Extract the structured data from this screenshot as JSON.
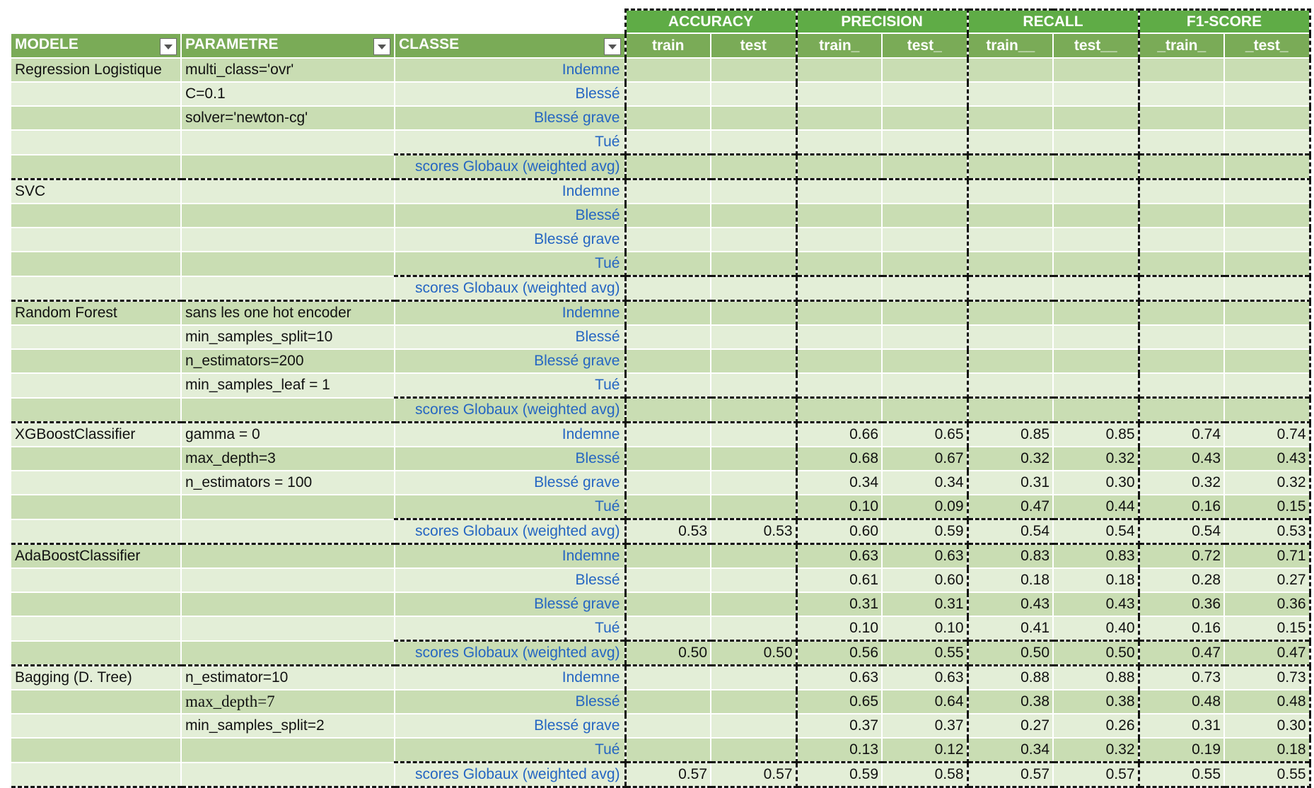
{
  "groups": [
    "ACCURACY",
    "PRECISION",
    "RECALL",
    "F1-SCORE"
  ],
  "headers": {
    "model": "MODELE",
    "param": "PARAMETRE",
    "class": "CLASSE",
    "sub": [
      "train",
      "test",
      "train_",
      "test_",
      "train__",
      "test__",
      "_train_",
      "_test_"
    ]
  },
  "blocks": [
    {
      "model": "Regression Logistique",
      "rows": [
        {
          "param": "multi_class='ovr'",
          "class": "Indemne",
          "v": [
            "",
            "",
            "",
            "",
            "",
            "",
            "",
            ""
          ]
        },
        {
          "param": "C=0.1",
          "class": "Blessé",
          "v": [
            "",
            "",
            "",
            "",
            "",
            "",
            "",
            ""
          ]
        },
        {
          "param": "solver='newton-cg'",
          "class": "Blessé grave",
          "v": [
            "",
            "",
            "",
            "",
            "",
            "",
            "",
            ""
          ]
        },
        {
          "param": "",
          "class": "Tué",
          "v": [
            "",
            "",
            "",
            "",
            "",
            "",
            "",
            ""
          ]
        },
        {
          "param": "",
          "class": "scores Globaux (weighted avg)",
          "v": [
            "",
            "",
            "",
            "",
            "",
            "",
            "",
            ""
          ]
        }
      ]
    },
    {
      "model": "SVC",
      "rows": [
        {
          "param": "",
          "class": "Indemne",
          "v": [
            "",
            "",
            "",
            "",
            "",
            "",
            "",
            ""
          ]
        },
        {
          "param": "",
          "class": "Blessé",
          "v": [
            "",
            "",
            "",
            "",
            "",
            "",
            "",
            ""
          ]
        },
        {
          "param": "",
          "class": "Blessé grave",
          "v": [
            "",
            "",
            "",
            "",
            "",
            "",
            "",
            ""
          ]
        },
        {
          "param": "",
          "class": "Tué",
          "v": [
            "",
            "",
            "",
            "",
            "",
            "",
            "",
            ""
          ]
        },
        {
          "param": "",
          "class": "scores Globaux (weighted avg)",
          "v": [
            "",
            "",
            "",
            "",
            "",
            "",
            "",
            ""
          ]
        }
      ]
    },
    {
      "model": "Random Forest",
      "rows": [
        {
          "param": "sans les one hot encoder",
          "class": "Indemne",
          "v": [
            "",
            "",
            "",
            "",
            "",
            "",
            "",
            ""
          ]
        },
        {
          "param": "min_samples_split=10",
          "class": "Blessé",
          "v": [
            "",
            "",
            "",
            "",
            "",
            "",
            "",
            ""
          ]
        },
        {
          "param": "n_estimators=200",
          "class": "Blessé grave",
          "v": [
            "",
            "",
            "",
            "",
            "",
            "",
            "",
            ""
          ]
        },
        {
          "param": "min_samples_leaf = 1",
          "class": "Tué",
          "v": [
            "",
            "",
            "",
            "",
            "",
            "",
            "",
            ""
          ]
        },
        {
          "param": "",
          "class": "scores Globaux (weighted avg)",
          "v": [
            "",
            "",
            "",
            "",
            "",
            "",
            "",
            ""
          ]
        }
      ]
    },
    {
      "model": "XGBoostClassifier",
      "rows": [
        {
          "param": "gamma = 0",
          "class": "Indemne",
          "v": [
            "",
            "",
            "0.66",
            "0.65",
            "0.85",
            "0.85",
            "0.74",
            "0.74"
          ]
        },
        {
          "param": "max_depth=3",
          "class": "Blessé",
          "v": [
            "",
            "",
            "0.68",
            "0.67",
            "0.32",
            "0.32",
            "0.43",
            "0.43"
          ]
        },
        {
          "param": "n_estimators = 100",
          "class": "Blessé grave",
          "v": [
            "",
            "",
            "0.34",
            "0.34",
            "0.31",
            "0.30",
            "0.32",
            "0.32"
          ]
        },
        {
          "param": "",
          "class": "Tué",
          "v": [
            "",
            "",
            "0.10",
            "0.09",
            "0.47",
            "0.44",
            "0.16",
            "0.15"
          ]
        },
        {
          "param": "",
          "class": "scores Globaux (weighted avg)",
          "v": [
            "0.53",
            "0.53",
            "0.60",
            "0.59",
            "0.54",
            "0.54",
            "0.54",
            "0.53"
          ]
        }
      ]
    },
    {
      "model": "AdaBoostClassifier",
      "rows": [
        {
          "param": "",
          "class": "Indemne",
          "v": [
            "",
            "",
            "0.63",
            "0.63",
            "0.83",
            "0.83",
            "0.72",
            "0.71"
          ]
        },
        {
          "param": "",
          "class": "Blessé",
          "v": [
            "",
            "",
            "0.61",
            "0.60",
            "0.18",
            "0.18",
            "0.28",
            "0.27"
          ]
        },
        {
          "param": "",
          "class": "Blessé grave",
          "v": [
            "",
            "",
            "0.31",
            "0.31",
            "0.43",
            "0.43",
            "0.36",
            "0.36"
          ]
        },
        {
          "param": "",
          "class": "Tué",
          "v": [
            "",
            "",
            "0.10",
            "0.10",
            "0.41",
            "0.40",
            "0.16",
            "0.15"
          ]
        },
        {
          "param": "",
          "class": "scores Globaux (weighted avg)",
          "v": [
            "0.50",
            "0.50",
            "0.56",
            "0.55",
            "0.50",
            "0.50",
            "0.47",
            "0.47"
          ]
        }
      ]
    },
    {
      "model": "Bagging (D. Tree)",
      "rows": [
        {
          "param": "n_estimator=10",
          "class": "Indemne",
          "v": [
            "",
            "",
            "0.63",
            "0.63",
            "0.88",
            "0.88",
            "0.73",
            "0.73"
          ]
        },
        {
          "param": "max_depth=7",
          "class": "Blessé",
          "v": [
            "",
            "",
            "0.65",
            "0.64",
            "0.38",
            "0.38",
            "0.48",
            "0.48"
          ],
          "serif": true
        },
        {
          "param": "min_samples_split=2",
          "class": "Blessé grave",
          "v": [
            "",
            "",
            "0.37",
            "0.37",
            "0.27",
            "0.26",
            "0.31",
            "0.30"
          ]
        },
        {
          "param": "",
          "class": "Tué",
          "v": [
            "",
            "",
            "0.13",
            "0.12",
            "0.34",
            "0.32",
            "0.19",
            "0.18"
          ]
        },
        {
          "param": "",
          "class": "scores Globaux (weighted avg)",
          "v": [
            "0.57",
            "0.57",
            "0.59",
            "0.58",
            "0.57",
            "0.57",
            "0.55",
            "0.55"
          ]
        }
      ]
    }
  ]
}
